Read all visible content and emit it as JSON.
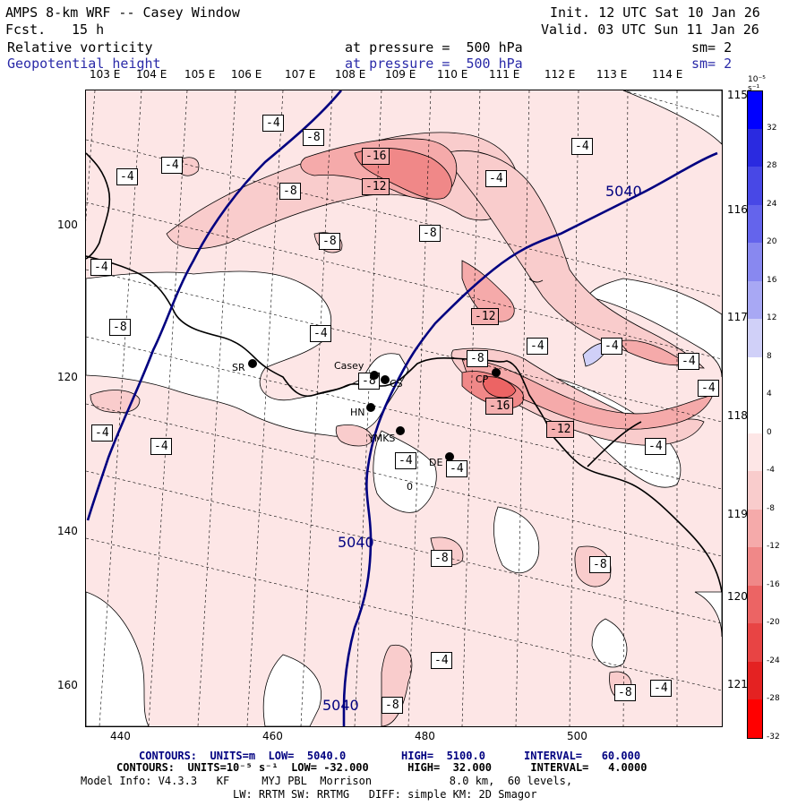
{
  "header": {
    "title": "AMPS 8-km WRF -- Casey Window",
    "init": "Init. 12 UTC Sat 10 Jan 26",
    "fcst_label": "Fcst.",
    "fcst_value": "15 h",
    "valid": "Valid. 03 UTC Sun 11 Jan 26",
    "field1": "Relative vorticity",
    "field1_level": "at pressure =  500 hPa",
    "field1_sm": "sm= 2",
    "field2": "Geopotential height",
    "field2_level": "at pressure =  500 hPa",
    "field2_sm": "sm= 2"
  },
  "axes": {
    "top_lon": [
      "103 E",
      "104 E",
      "105 E",
      "106 E",
      "107 E",
      "108 E",
      "109 E",
      "110 E",
      "111 E",
      "112 E",
      "113 E",
      "114 E"
    ],
    "right_lon": [
      "115 E",
      "116 E",
      "117 E",
      "118 E",
      "119 E",
      "120 E",
      "121 E"
    ],
    "x_ticks": [
      "440",
      "460",
      "480",
      "500"
    ],
    "y_ticks": [
      "100",
      "120",
      "140",
      "160"
    ]
  },
  "colorbar": {
    "unit": "10⁻⁵ s⁻¹",
    "ticks": [
      "32",
      "28",
      "24",
      "20",
      "16",
      "12",
      "8",
      "4",
      "0",
      "-4",
      "-8",
      "-12",
      "-16",
      "-20",
      "-24",
      "-28",
      "-32"
    ],
    "colors": [
      "#0000ff",
      "#2a2ae0",
      "#4848e6",
      "#6464ec",
      "#8888f0",
      "#a8a8f4",
      "#d0d0f8",
      "#ffffff",
      "#ffffff",
      "#fde6e6",
      "#f9cccc",
      "#f5aaaa",
      "#f08888",
      "#ec6464",
      "#e84444",
      "#e42222",
      "#ff0000"
    ]
  },
  "stations": [
    {
      "name": "SR"
    },
    {
      "name": "Casey"
    },
    {
      "name": "CS"
    },
    {
      "name": "HN"
    },
    {
      "name": "YMKS"
    },
    {
      "name": "DE"
    },
    {
      "name": "CP"
    },
    {
      "name": "0"
    }
  ],
  "contour_labels": [
    "-4",
    "-4",
    "-8",
    "-8",
    "-16",
    "-12",
    "-8",
    "-8",
    "-4",
    "-4",
    "-4",
    "-4",
    "-8",
    "-4",
    "-12",
    "-8",
    "-4",
    "-4",
    "-8",
    "-16",
    "-12",
    "-4",
    "-4",
    "-4",
    "-4",
    "-4",
    "-8",
    "-4",
    "-8",
    "-4",
    "-8",
    "-8",
    "-4",
    "-4"
  ],
  "height_labels": [
    "5040",
    "5040",
    "5040"
  ],
  "footer": {
    "line1_a": "CONTOURS:  UNITS=m  LOW=  5040.0",
    "line1_b": "HIGH=  5100.0",
    "line1_c": "INTERVAL=   60.000",
    "line2": "CONTOURS:  UNITS=10⁻⁵ s⁻¹  LOW= -32.000      HIGH=  32.000      INTERVAL=   4.0000",
    "line3": "Model Info: V4.3.3   KF     MYJ PBL  Morrison            8.0 km,  60 levels,",
    "line4": "LW: RRTM SW: RRTMG   DIFF: simple KM: 2D Smagor"
  }
}
